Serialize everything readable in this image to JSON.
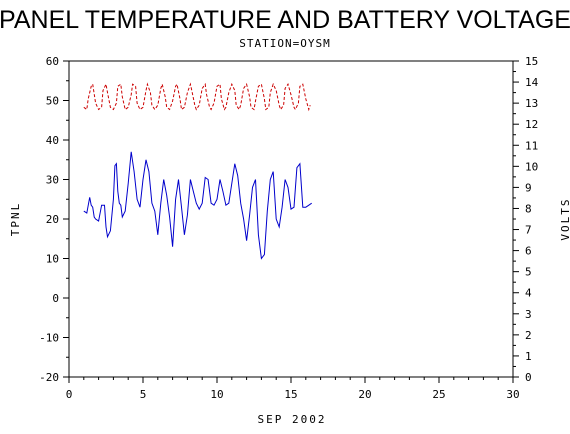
{
  "chart_data": {
    "type": "line",
    "title": "PANEL TEMPERATURE AND BATTERY VOLTAGE",
    "subtitle": "STATION=OYSM",
    "xlabel": "SEP 2002",
    "ylabel_left": "TPNL",
    "ylabel_right": "VOLTS",
    "xlim": [
      0,
      30
    ],
    "ylim_left": [
      -20,
      60
    ],
    "ylim_right": [
      0,
      15
    ],
    "x_ticks": [
      "0",
      "5",
      "10",
      "15",
      "20",
      "25",
      "30"
    ],
    "y_left_ticks": [
      "-20",
      "-10",
      "0",
      "10",
      "20",
      "30",
      "40",
      "50",
      "60"
    ],
    "y_right_ticks": [
      "0",
      "1",
      "2",
      "3",
      "4",
      "5",
      "6",
      "7",
      "8",
      "9",
      "10",
      "11",
      "12",
      "13",
      "14",
      "15"
    ],
    "grid": false,
    "series": [
      {
        "axis": "left",
        "color": "#0000cc",
        "x": [
          1.0,
          1.2,
          1.4,
          1.5,
          1.6,
          1.7,
          1.8,
          2.0,
          2.2,
          2.4,
          2.5,
          2.6,
          2.8,
          3.0,
          3.1,
          3.2,
          3.3,
          3.4,
          3.5,
          3.6,
          3.8,
          4.0,
          4.2,
          4.4,
          4.6,
          4.8,
          5.0,
          5.2,
          5.4,
          5.6,
          5.8,
          6.0,
          6.2,
          6.4,
          6.6,
          6.8,
          7.0,
          7.2,
          7.4,
          7.6,
          7.8,
          8.0,
          8.2,
          8.4,
          8.6,
          8.8,
          9.0,
          9.2,
          9.4,
          9.6,
          9.8,
          10.0,
          10.2,
          10.4,
          10.6,
          10.8,
          11.0,
          11.2,
          11.4,
          11.6,
          11.8,
          12.0,
          12.2,
          12.4,
          12.6,
          12.8,
          13.0,
          13.2,
          13.4,
          13.6,
          13.8,
          14.0,
          14.2,
          14.4,
          14.6,
          14.8,
          15.0,
          15.2,
          15.4,
          15.6,
          15.8,
          16.0,
          16.2,
          16.4
        ],
        "y": [
          22,
          21.5,
          25.5,
          23.5,
          23,
          20.5,
          20,
          19.5,
          23.5,
          23.5,
          18,
          15.5,
          17,
          25,
          33.5,
          34,
          27,
          24,
          23.5,
          20.5,
          22,
          29,
          37,
          32,
          25,
          23,
          30,
          35,
          32,
          24,
          22,
          16,
          24,
          30,
          26,
          20.5,
          13,
          25,
          30,
          23,
          16,
          21,
          30,
          27,
          24,
          22.5,
          24,
          30.5,
          30,
          24,
          23.5,
          25,
          30,
          27,
          23.5,
          24,
          29,
          34,
          31,
          24,
          20,
          14.5,
          21,
          28,
          30,
          16,
          10,
          11,
          22,
          30,
          32,
          20,
          18,
          23,
          30,
          28,
          22.5,
          23,
          33,
          34,
          23,
          23,
          23.5,
          24
        ]
      },
      {
        "axis": "right",
        "color": "#cc0000",
        "dashed": true,
        "x": [
          1.0,
          1.2,
          1.3,
          1.5,
          1.6,
          1.8,
          2.0,
          2.2,
          2.3,
          2.5,
          2.6,
          2.8,
          3.0,
          3.2,
          3.3,
          3.5,
          3.6,
          3.8,
          4.0,
          4.2,
          4.3,
          4.5,
          4.6,
          4.8,
          5.0,
          5.2,
          5.3,
          5.5,
          5.6,
          5.8,
          6.0,
          6.2,
          6.3,
          6.5,
          6.6,
          6.8,
          7.0,
          7.2,
          7.3,
          7.5,
          7.6,
          7.8,
          8.0,
          8.2,
          8.3,
          8.5,
          8.6,
          8.8,
          9.0,
          9.2,
          9.3,
          9.5,
          9.6,
          9.8,
          10.0,
          10.2,
          10.3,
          10.5,
          10.6,
          10.8,
          11.0,
          11.2,
          11.3,
          11.5,
          11.6,
          11.8,
          12.0,
          12.2,
          12.3,
          12.5,
          12.6,
          12.8,
          13.0,
          13.2,
          13.3,
          13.5,
          13.6,
          13.8,
          14.0,
          14.2,
          14.3,
          14.5,
          14.6,
          14.8,
          15.0,
          15.2,
          15.3,
          15.5,
          15.6,
          15.8,
          16.0,
          16.2,
          16.3
        ],
        "y": [
          12.8,
          12.7,
          13.2,
          13.8,
          13.9,
          13.0,
          12.7,
          12.8,
          13.6,
          13.9,
          13.5,
          12.8,
          12.7,
          13.0,
          13.8,
          13.9,
          13.3,
          12.7,
          12.8,
          13.4,
          13.9,
          13.8,
          13.0,
          12.7,
          12.8,
          13.6,
          13.9,
          13.5,
          12.9,
          12.7,
          12.9,
          13.7,
          13.9,
          13.3,
          12.8,
          12.7,
          13.1,
          13.8,
          13.9,
          13.2,
          12.7,
          12.8,
          13.5,
          13.9,
          13.6,
          12.9,
          12.7,
          12.9,
          13.7,
          13.9,
          13.4,
          12.8,
          12.7,
          13.0,
          13.8,
          13.9,
          13.2,
          12.7,
          12.8,
          13.5,
          13.9,
          13.6,
          12.9,
          12.7,
          12.9,
          13.7,
          13.9,
          13.3,
          12.8,
          12.7,
          13.1,
          13.8,
          13.9,
          13.2,
          12.7,
          12.8,
          13.5,
          13.9,
          13.6,
          12.9,
          12.7,
          12.9,
          13.7,
          13.9,
          13.4,
          12.8,
          12.7,
          13.0,
          13.8,
          13.9,
          13.2,
          12.7,
          12.9
        ]
      }
    ]
  }
}
